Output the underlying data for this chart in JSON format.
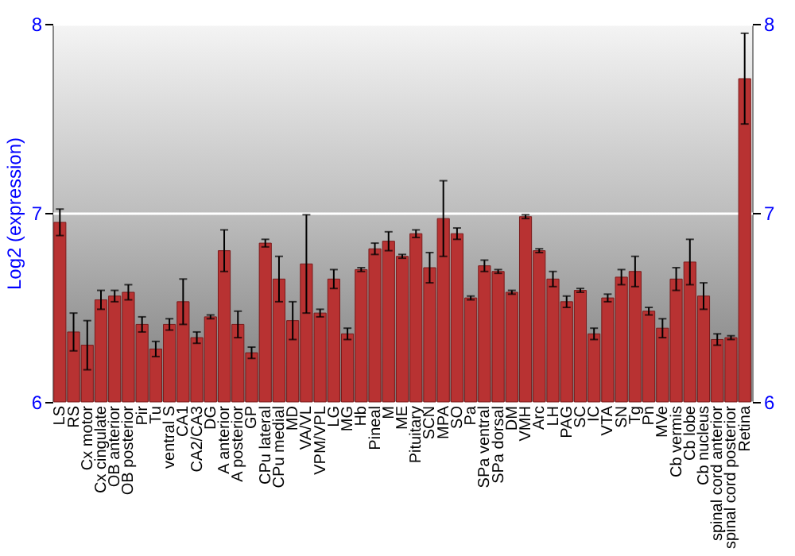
{
  "chart_data": {
    "type": "bar",
    "ylabel": "Log2 (expression)",
    "categories": [
      "LS",
      "RS",
      "Cx motor",
      "Cx cingulate",
      "OB anterior",
      "OB posterior",
      "Pir",
      "Tu",
      "ventral S",
      "CA1",
      "CA2/CA3",
      "DG",
      "A anterior",
      "A posterior",
      "GP",
      "CPu lateral",
      "CPu medial",
      "MD",
      "VA/VL",
      "VPM/VPL",
      "LG",
      "MG",
      "Hb",
      "Pineal",
      "M",
      "ME",
      "Pituitary",
      "SCN",
      "MPA",
      "SO",
      "Pa",
      "SPa ventral",
      "SPa dorsal",
      "DM",
      "VMH",
      "Arc",
      "LH",
      "PAG",
      "SC",
      "IC",
      "VTA",
      "SN",
      "Tg",
      "Pn",
      "MVe",
      "Cb vermis",
      "Cb lobe",
      "Cb nucleus",
      "spinal cord anterior",
      "spinal cord posterior",
      "Retina"
    ],
    "series": [
      {
        "color": "#b83232",
        "values": [
          6.95,
          6.37,
          6.3,
          6.54,
          6.56,
          6.58,
          6.41,
          6.28,
          6.41,
          6.53,
          6.34,
          6.45,
          6.8,
          6.41,
          6.26,
          6.84,
          6.65,
          6.43,
          6.73,
          6.47,
          6.65,
          6.36,
          6.7,
          6.81,
          6.85,
          6.77,
          6.89,
          6.71,
          6.97,
          6.89,
          6.55,
          6.72,
          6.69,
          6.58,
          6.98,
          6.8,
          6.65,
          6.53,
          6.59,
          6.36,
          6.55,
          6.66,
          6.69,
          6.48,
          6.39,
          6.65,
          6.74,
          6.56,
          6.33,
          6.34,
          7.71
        ],
        "errors": [
          0.07,
          0.1,
          0.13,
          0.05,
          0.03,
          0.04,
          0.04,
          0.04,
          0.03,
          0.12,
          0.03,
          0.01,
          0.11,
          0.07,
          0.03,
          0.02,
          0.12,
          0.1,
          0.26,
          0.02,
          0.05,
          0.03,
          0.01,
          0.03,
          0.05,
          0.01,
          0.02,
          0.08,
          0.2,
          0.03,
          0.01,
          0.03,
          0.01,
          0.01,
          0.01,
          0.01,
          0.04,
          0.03,
          0.01,
          0.03,
          0.02,
          0.04,
          0.08,
          0.02,
          0.05,
          0.06,
          0.12,
          0.07,
          0.03,
          0.01,
          0.24
        ]
      }
    ],
    "ylim": [
      6,
      8
    ],
    "yticks": [
      6,
      7,
      8
    ],
    "y2lim": [
      6,
      8
    ],
    "y2ticks": [
      6,
      7,
      8
    ],
    "grid": "y"
  }
}
